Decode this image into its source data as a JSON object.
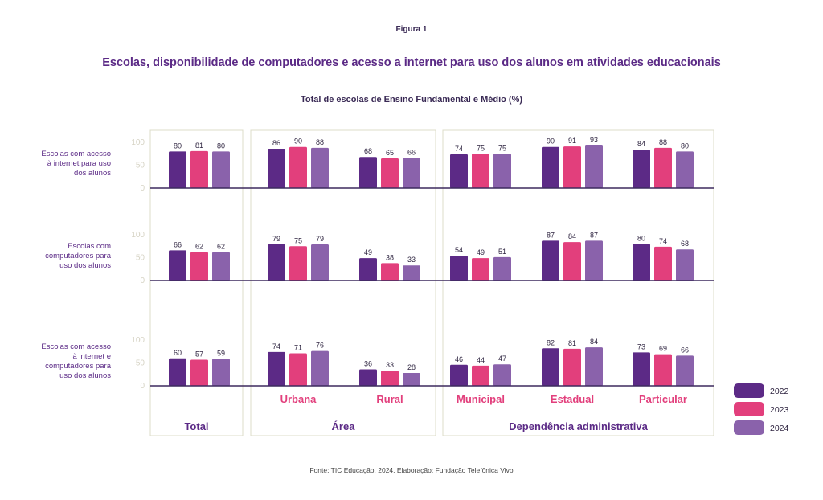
{
  "figure_label": "Figura 1",
  "title": "Escolas, disponibilidade de computadores e acesso a internet para uso dos alunos em atividades educacionais",
  "subtitle": "Total de escolas de Ensino Fundamental e Médio (%)",
  "source": "Fonte: TIC Educação, 2024. Elaboração: Fundação Telefônica Vivo",
  "colors": {
    "2022": "#5c2a86",
    "2023": "#e23f7c",
    "2024": "#8a62ab",
    "row_label": "#5b2a86",
    "category": "#e23f7c",
    "group": "#5b2a86"
  },
  "chart_data": {
    "type": "bar",
    "ylim": [
      0,
      100
    ],
    "yticks": [
      "100",
      "50",
      "0"
    ],
    "legend": [
      "2022",
      "2023",
      "2024"
    ],
    "legend_position": "right",
    "groups": [
      {
        "label": "Total",
        "categories": [
          ""
        ]
      },
      {
        "label": "Área",
        "categories": [
          "Urbana",
          "Rural"
        ]
      },
      {
        "label": "Dependência administrativa",
        "categories": [
          "Municipal",
          "Estadual",
          "Particular"
        ]
      }
    ],
    "rows": [
      {
        "label": [
          "Escolas com acesso",
          "à internet para uso",
          "dos alunos"
        ],
        "values": [
          [
            80,
            81,
            80
          ],
          [
            86,
            90,
            88
          ],
          [
            68,
            65,
            66
          ],
          [
            74,
            75,
            75
          ],
          [
            90,
            91,
            93
          ],
          [
            84,
            88,
            80
          ]
        ]
      },
      {
        "label": [
          "Escolas com",
          "computadores para",
          "uso dos alunos"
        ],
        "values": [
          [
            66,
            62,
            62
          ],
          [
            79,
            75,
            79
          ],
          [
            49,
            38,
            33
          ],
          [
            54,
            49,
            51
          ],
          [
            87,
            84,
            87
          ],
          [
            80,
            74,
            68
          ]
        ]
      },
      {
        "label": [
          "Escolas com acesso",
          "à internet e",
          "computadores para",
          "uso dos alunos"
        ],
        "values": [
          [
            60,
            57,
            59
          ],
          [
            74,
            71,
            76
          ],
          [
            36,
            33,
            28
          ],
          [
            46,
            44,
            47
          ],
          [
            82,
            81,
            84
          ],
          [
            73,
            69,
            66
          ]
        ]
      }
    ]
  }
}
